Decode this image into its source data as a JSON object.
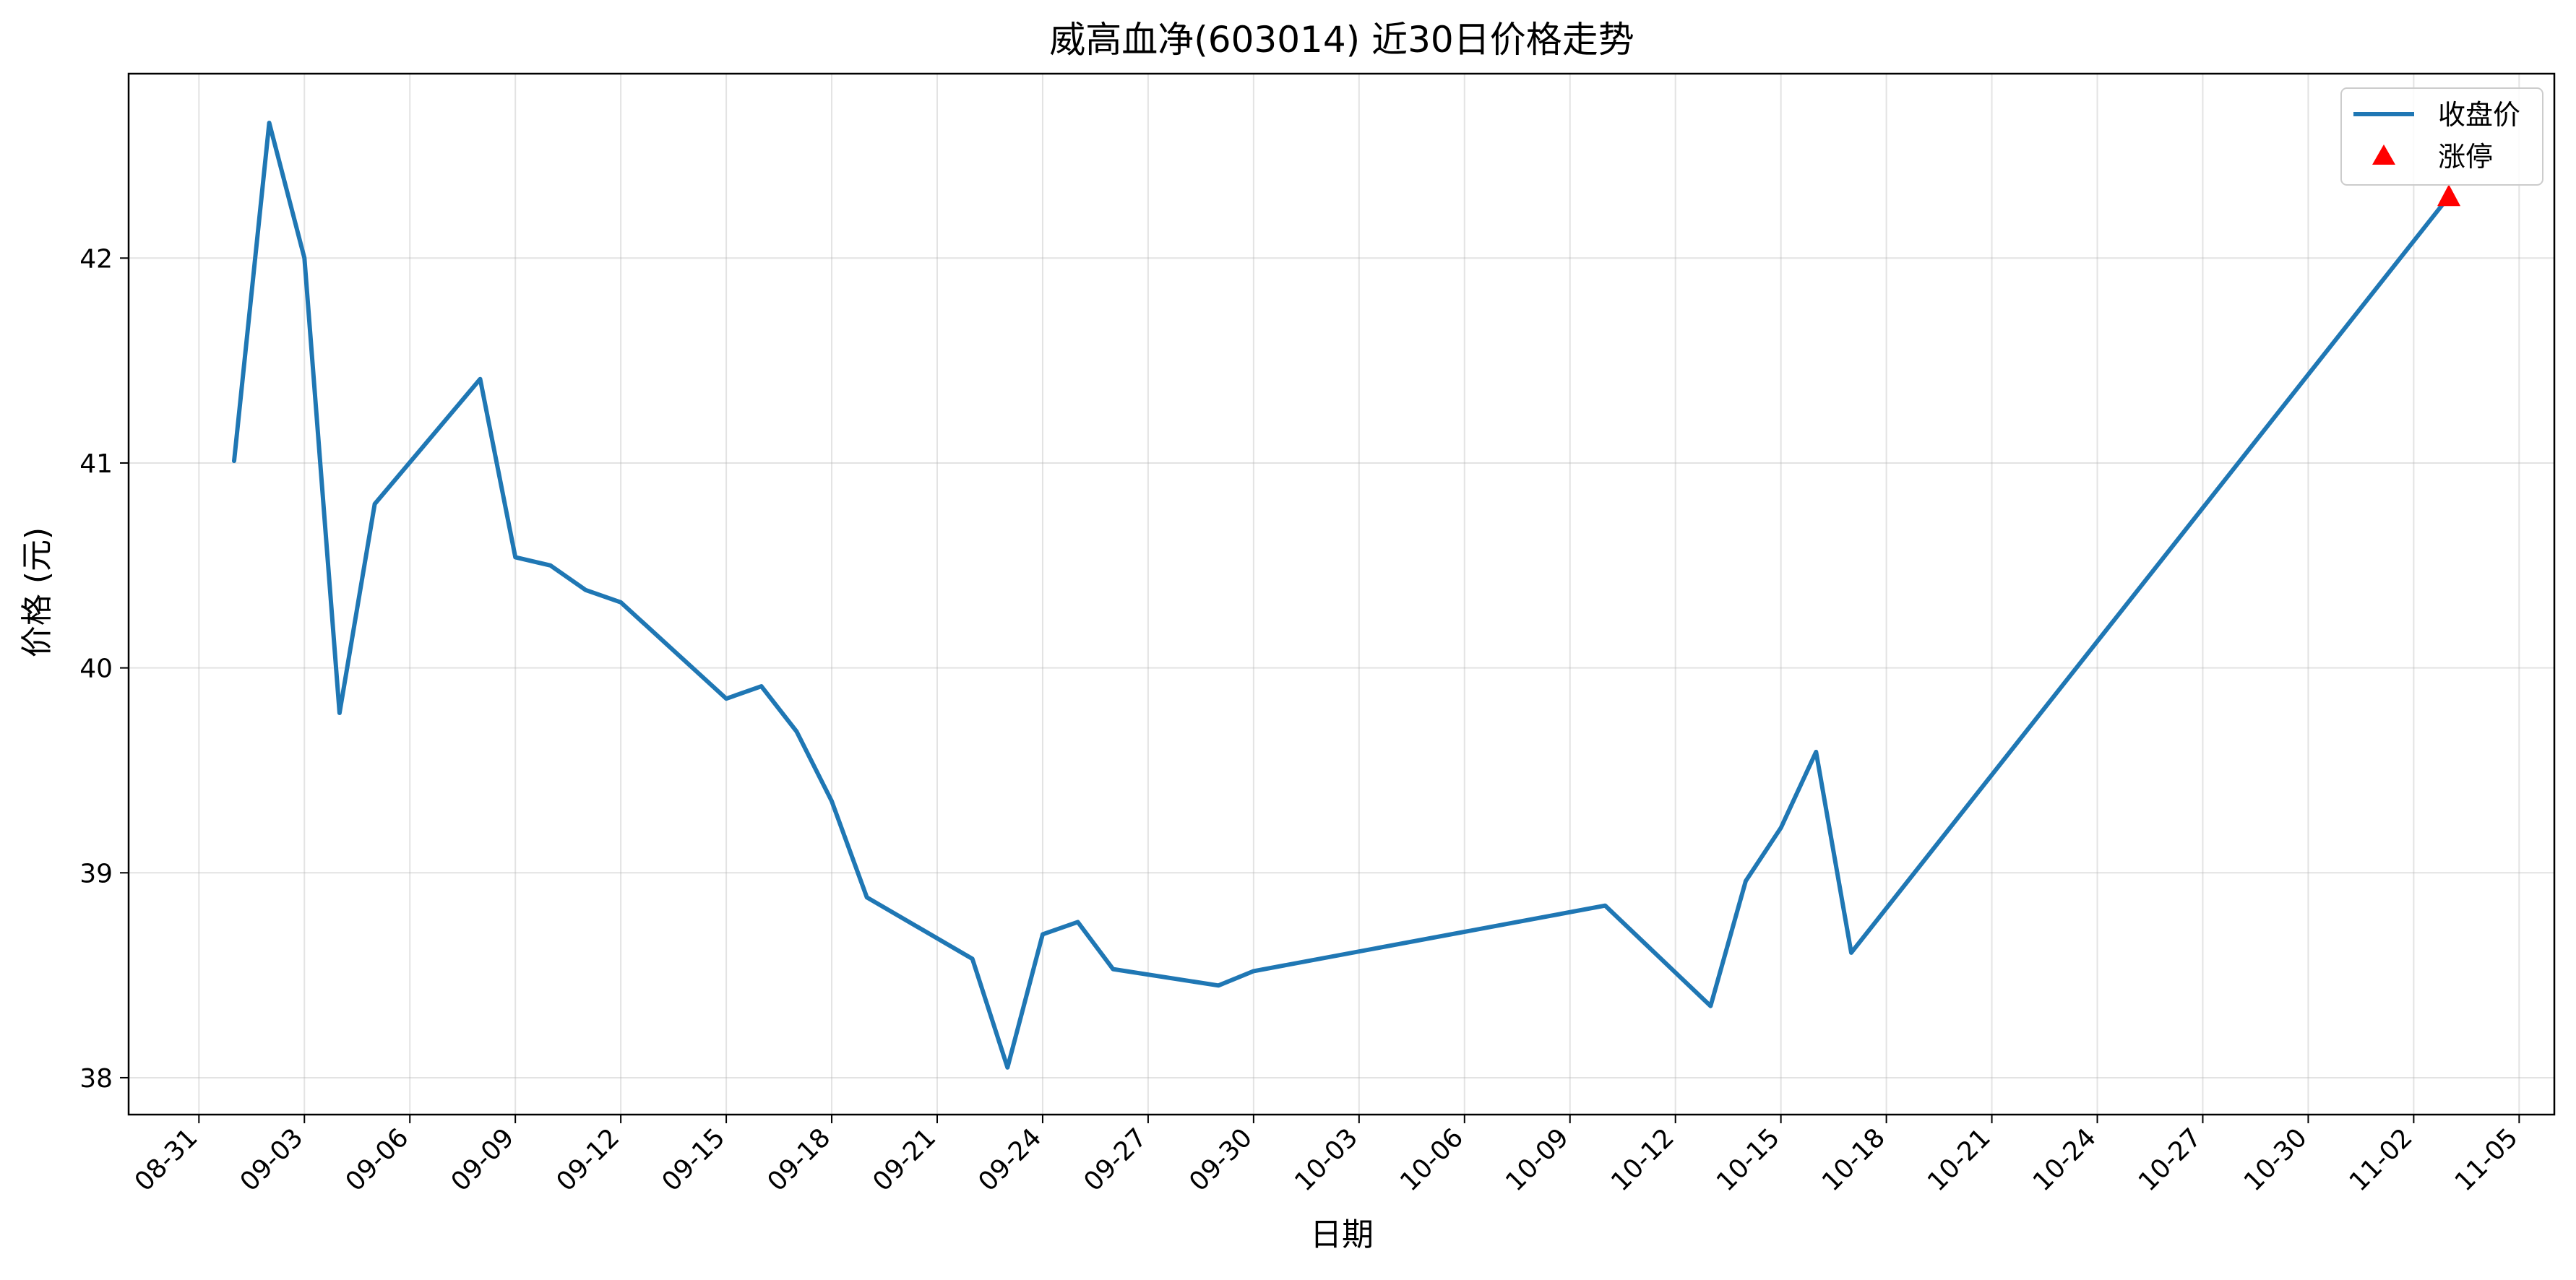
{
  "chart_data": {
    "type": "line",
    "title": "威高血净(603014) 近30日价格走势",
    "xlabel": "日期",
    "ylabel": "价格 (元)",
    "x_axis_type": "date",
    "year": 2025,
    "xlim": [
      "2025-08-29",
      "2025-11-06"
    ],
    "ylim": [
      37.82,
      42.9
    ],
    "grid": true,
    "legend_position": "top-right",
    "x_ticks": [
      "08-31",
      "09-03",
      "09-06",
      "09-09",
      "09-12",
      "09-15",
      "09-18",
      "09-21",
      "09-24",
      "09-27",
      "09-30",
      "10-03",
      "10-06",
      "10-09",
      "10-12",
      "10-15",
      "10-18",
      "10-21",
      "10-24",
      "10-27",
      "10-30",
      "11-02",
      "11-05"
    ],
    "x_tick_dates": [
      "2025-08-31",
      "2025-09-03",
      "2025-09-06",
      "2025-09-09",
      "2025-09-12",
      "2025-09-15",
      "2025-09-18",
      "2025-09-21",
      "2025-09-24",
      "2025-09-27",
      "2025-09-30",
      "2025-10-03",
      "2025-10-06",
      "2025-10-09",
      "2025-10-12",
      "2025-10-15",
      "2025-10-18",
      "2025-10-21",
      "2025-10-24",
      "2025-10-27",
      "2025-10-30",
      "2025-11-02",
      "2025-11-05"
    ],
    "y_ticks": [
      38,
      39,
      40,
      41,
      42
    ],
    "series": [
      {
        "name": "收盘价",
        "kind": "line",
        "color": "#1f77b4",
        "points": [
          {
            "x": "2025-09-01",
            "y": 41.01
          },
          {
            "x": "2025-09-02",
            "y": 42.66
          },
          {
            "x": "2025-09-03",
            "y": 42.0
          },
          {
            "x": "2025-09-04",
            "y": 39.78
          },
          {
            "x": "2025-09-05",
            "y": 40.8
          },
          {
            "x": "2025-09-08",
            "y": 41.41
          },
          {
            "x": "2025-09-09",
            "y": 40.54
          },
          {
            "x": "2025-09-10",
            "y": 40.5
          },
          {
            "x": "2025-09-11",
            "y": 40.38
          },
          {
            "x": "2025-09-12",
            "y": 40.32
          },
          {
            "x": "2025-09-15",
            "y": 39.85
          },
          {
            "x": "2025-09-16",
            "y": 39.91
          },
          {
            "x": "2025-09-17",
            "y": 39.69
          },
          {
            "x": "2025-09-18",
            "y": 39.35
          },
          {
            "x": "2025-09-19",
            "y": 38.88
          },
          {
            "x": "2025-09-22",
            "y": 38.58
          },
          {
            "x": "2025-09-23",
            "y": 38.05
          },
          {
            "x": "2025-09-24",
            "y": 38.7
          },
          {
            "x": "2025-09-25",
            "y": 38.76
          },
          {
            "x": "2025-09-26",
            "y": 38.53
          },
          {
            "x": "2025-09-29",
            "y": 38.45
          },
          {
            "x": "2025-09-30",
            "y": 38.52
          },
          {
            "x": "2025-10-10",
            "y": 38.84
          },
          {
            "x": "2025-10-13",
            "y": 38.35
          },
          {
            "x": "2025-10-14",
            "y": 38.96
          },
          {
            "x": "2025-10-15",
            "y": 39.22
          },
          {
            "x": "2025-10-16",
            "y": 39.59
          },
          {
            "x": "2025-10-17",
            "y": 38.61
          },
          {
            "x": "2025-11-03",
            "y": 42.3
          }
        ]
      },
      {
        "name": "涨停",
        "kind": "scatter",
        "marker": "triangle",
        "color": "#ff0000",
        "points": [
          {
            "x": "2025-11-03",
            "y": 42.3
          }
        ]
      }
    ]
  }
}
